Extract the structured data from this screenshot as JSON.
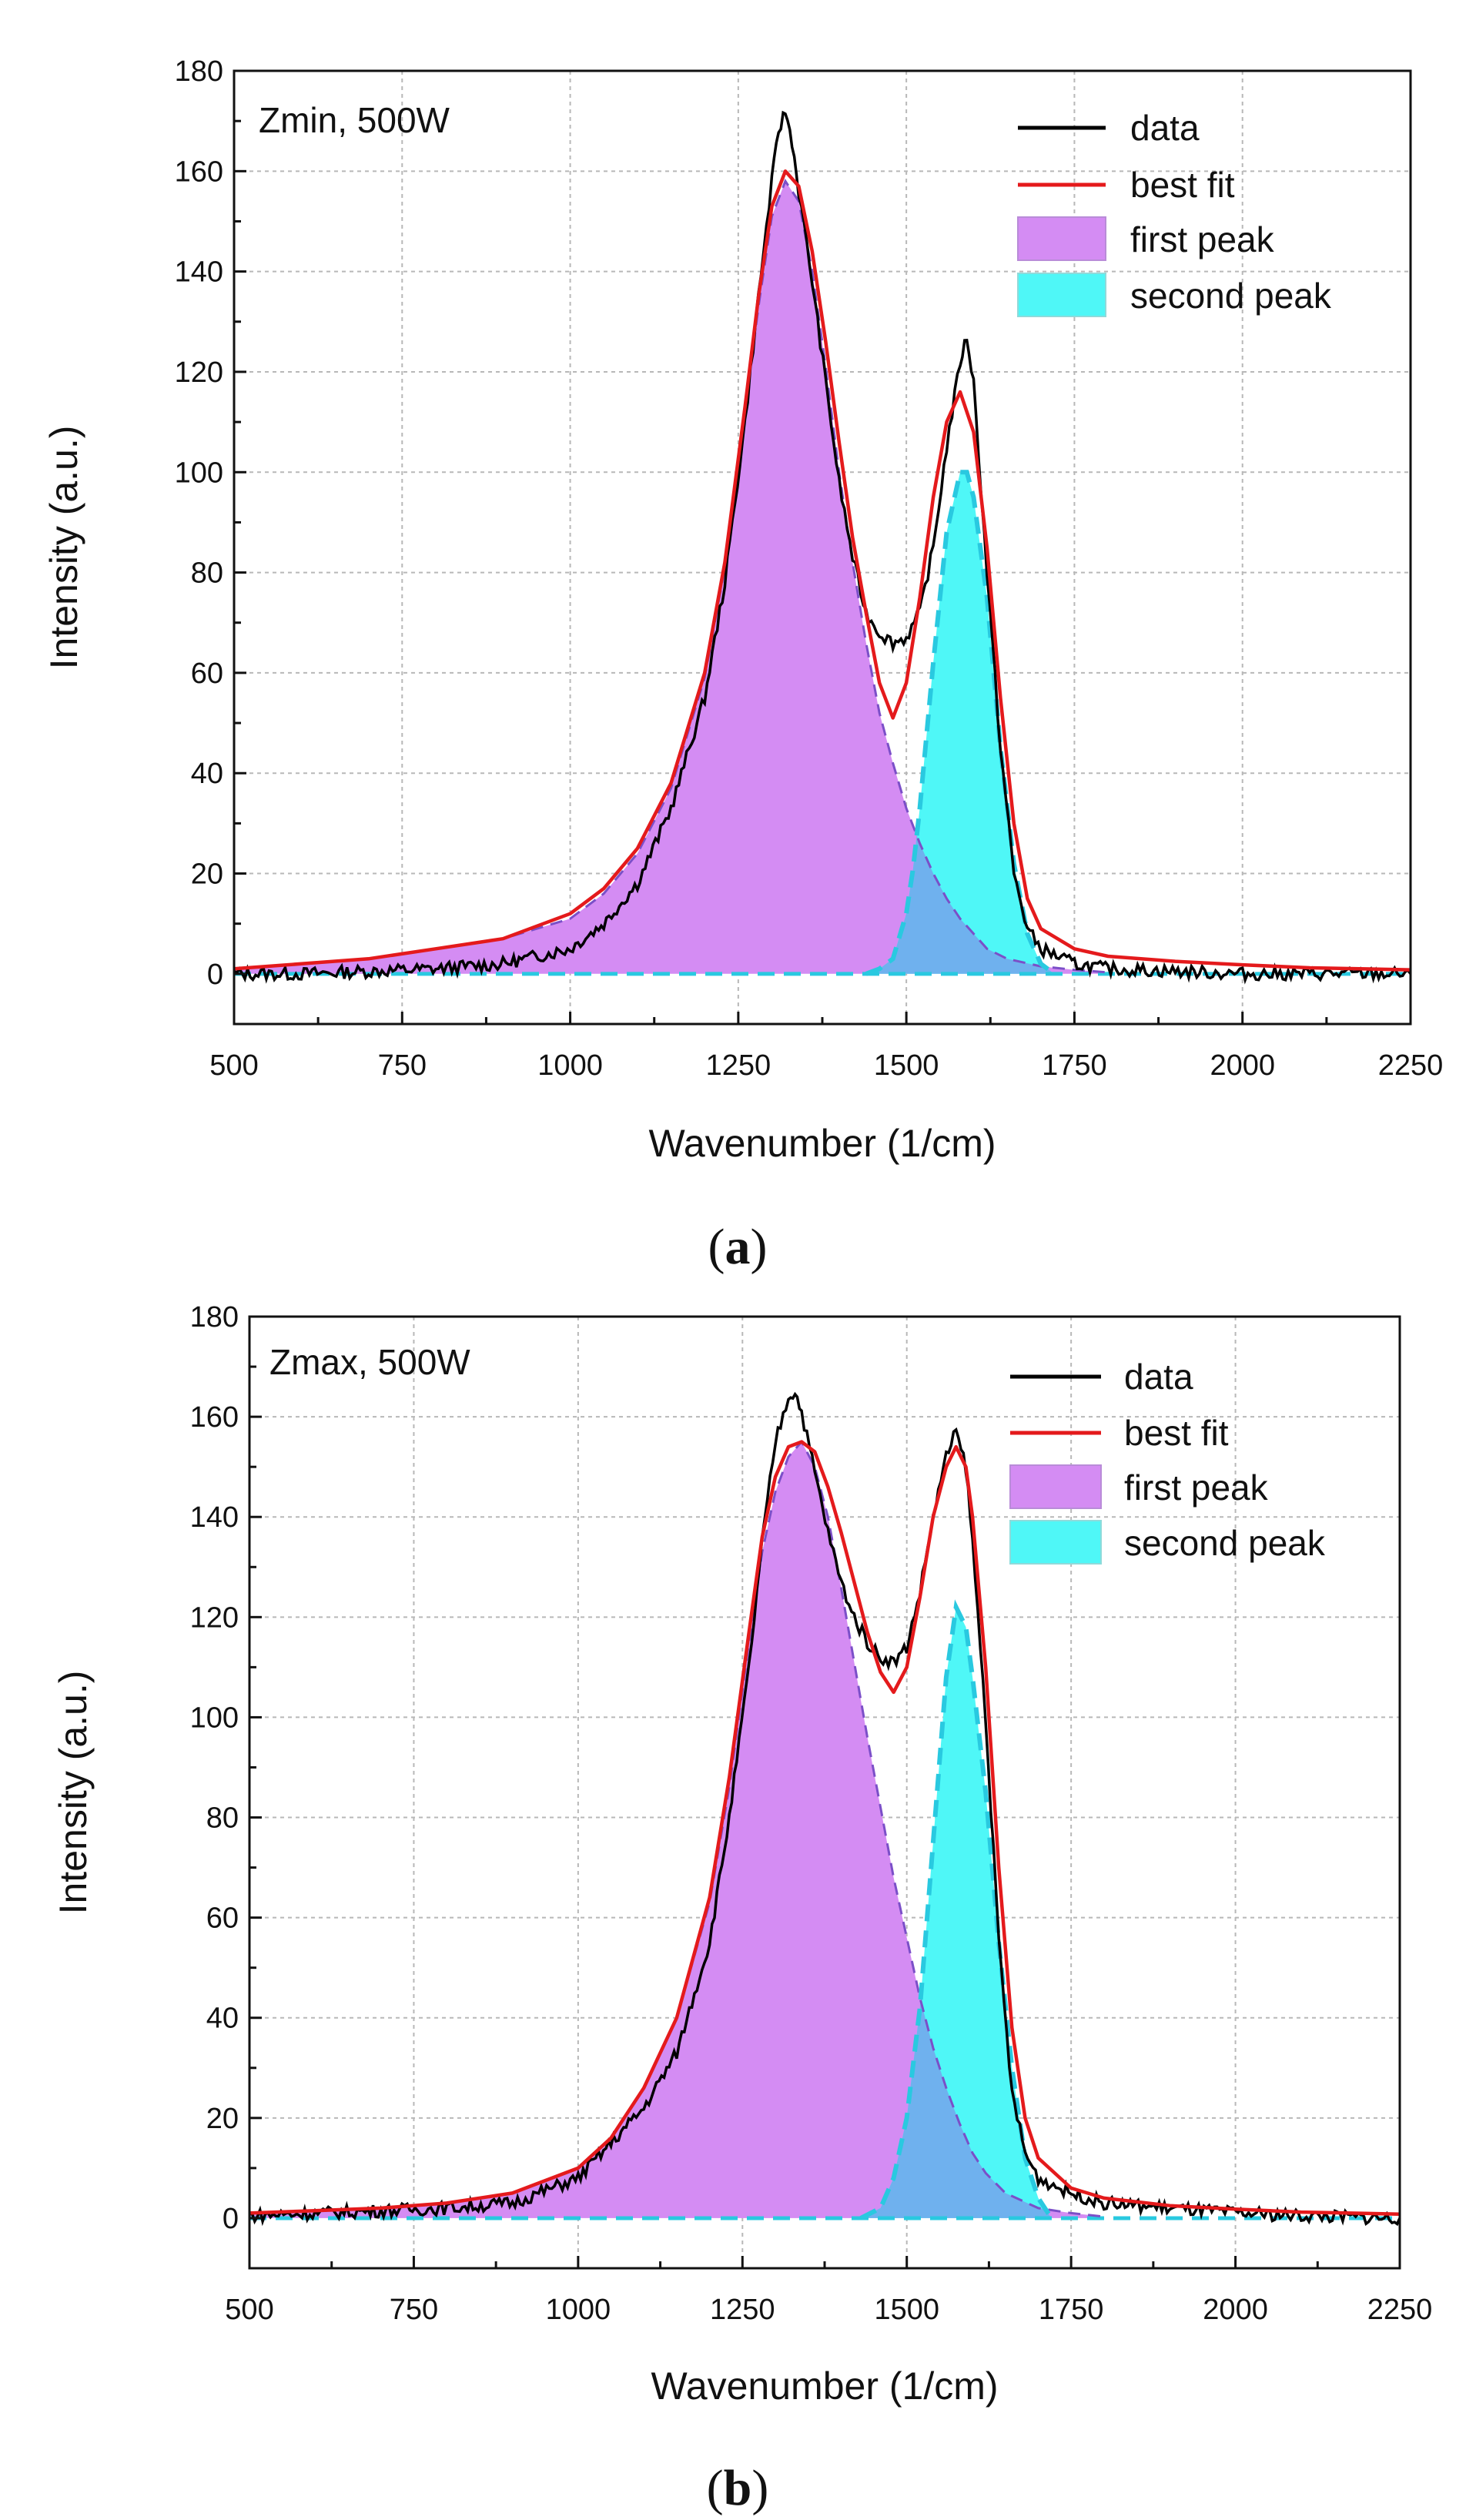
{
  "figure": {
    "panels": [
      {
        "id": "a",
        "label_open": "(",
        "label_letter": "a",
        "label_close": ")"
      },
      {
        "id": "b",
        "label_open": "(",
        "label_letter": "b",
        "label_close": ")"
      }
    ]
  },
  "colors": {
    "data": "#000000",
    "best_fit": "#e41a1c",
    "first_peak_fill": "#d48cf3",
    "first_peak_line": "#7b4fc8",
    "second_peak_fill": "#4ff7f7",
    "second_peak_line": "#29c9e0",
    "overlap_fill": "#6fb1ee",
    "baseline": "#29c9e0"
  },
  "chart_data": [
    {
      "type": "line",
      "panel": "a",
      "title": "",
      "annotation": "Zmin, 500W",
      "xlabel": "Wavenumber (1/cm)",
      "ylabel": "Intensity (a.u.)",
      "xlim": [
        500,
        2250
      ],
      "ylim": [
        -10,
        180
      ],
      "xticks": [
        500,
        750,
        1000,
        1250,
        1500,
        1750,
        2000,
        2250
      ],
      "yticks": [
        0,
        20,
        40,
        60,
        80,
        100,
        120,
        140,
        160,
        180
      ],
      "grid": true,
      "legend_position": "top-right",
      "legend": [
        "data",
        "best fit",
        "first peak",
        "second peak"
      ],
      "series": [
        {
          "name": "data",
          "x": [
            500,
            600,
            700,
            800,
            900,
            1000,
            1050,
            1100,
            1150,
            1200,
            1230,
            1260,
            1280,
            1300,
            1310,
            1320,
            1330,
            1340,
            1360,
            1380,
            1400,
            1420,
            1440,
            1460,
            1480,
            1500,
            1520,
            1540,
            1560,
            1580,
            1590,
            1600,
            1620,
            1640,
            1660,
            1680,
            1700,
            1750,
            1800,
            1900,
            2000,
            2100,
            2250
          ],
          "y": [
            0,
            0,
            0.5,
            1,
            2,
            5,
            10,
            18,
            33,
            55,
            78,
            110,
            135,
            158,
            168,
            172,
            166,
            156,
            138,
            118,
            98,
            83,
            72,
            68,
            66,
            67,
            72,
            85,
            105,
            122,
            127,
            118,
            80,
            45,
            20,
            9,
            5,
            2,
            1,
            0.5,
            0,
            0,
            0
          ]
        },
        {
          "name": "best fit",
          "x": [
            500,
            600,
            700,
            800,
            900,
            1000,
            1050,
            1100,
            1150,
            1200,
            1230,
            1260,
            1280,
            1300,
            1320,
            1340,
            1360,
            1380,
            1400,
            1420,
            1440,
            1460,
            1480,
            1500,
            1520,
            1540,
            1560,
            1580,
            1600,
            1620,
            1640,
            1660,
            1680,
            1700,
            1750,
            1800,
            1900,
            2000,
            2100,
            2250
          ],
          "y": [
            1,
            2,
            3,
            5,
            7,
            12,
            17,
            25,
            38,
            60,
            82,
            113,
            135,
            153,
            160,
            157,
            144,
            126,
            106,
            87,
            72,
            58,
            51,
            58,
            75,
            95,
            110,
            116,
            108,
            85,
            55,
            30,
            15,
            9,
            5,
            3.5,
            2.5,
            1.8,
            1.2,
            0.8
          ]
        },
        {
          "name": "first peak",
          "x": [
            500,
            600,
            700,
            800,
            900,
            1000,
            1050,
            1100,
            1150,
            1200,
            1230,
            1260,
            1280,
            1300,
            1320,
            1340,
            1360,
            1380,
            1400,
            1420,
            1440,
            1460,
            1480,
            1500,
            1520,
            1540,
            1560,
            1580,
            1600,
            1620,
            1650,
            1700,
            1750,
            1800
          ],
          "y": [
            1,
            2,
            3,
            5,
            7,
            11,
            16,
            24,
            37,
            59,
            81,
            112,
            133,
            151,
            158,
            154,
            140,
            121,
            100,
            82,
            66,
            52,
            42,
            33,
            26,
            20,
            15,
            11,
            8,
            5,
            3,
            1.5,
            0.8,
            0.3
          ]
        },
        {
          "name": "second peak",
          "x": [
            1440,
            1460,
            1480,
            1500,
            1510,
            1520,
            1540,
            1560,
            1580,
            1590,
            1600,
            1620,
            1640,
            1660,
            1680,
            1700,
            1720
          ],
          "y": [
            0,
            1,
            3,
            12,
            21,
            33,
            62,
            88,
            100,
            100,
            95,
            75,
            45,
            22,
            8,
            2,
            0
          ]
        }
      ]
    },
    {
      "type": "line",
      "panel": "b",
      "title": "",
      "annotation": "Zmax, 500W",
      "xlabel": "Wavenumber (1/cm)",
      "ylabel": "Intensity (a.u.)",
      "xlim": [
        500,
        2250
      ],
      "ylim": [
        -10,
        180
      ],
      "xticks": [
        500,
        750,
        1000,
        1250,
        1500,
        1750,
        2000,
        2250
      ],
      "yticks": [
        0,
        20,
        40,
        60,
        80,
        100,
        120,
        140,
        160,
        180
      ],
      "grid": true,
      "legend_position": "top-right",
      "legend": [
        "data",
        "best fit",
        "first peak",
        "second peak"
      ],
      "series": [
        {
          "name": "data",
          "x": [
            500,
            600,
            700,
            800,
            900,
            1000,
            1050,
            1100,
            1150,
            1200,
            1230,
            1260,
            1280,
            1300,
            1320,
            1330,
            1340,
            1360,
            1380,
            1400,
            1420,
            1440,
            1460,
            1480,
            1500,
            1520,
            1540,
            1560,
            1575,
            1590,
            1600,
            1620,
            1640,
            1660,
            1680,
            1700,
            1750,
            1800,
            1900,
            2000,
            2100,
            2250
          ],
          "y": [
            0.5,
            1,
            1.5,
            2,
            3,
            8,
            15,
            22,
            33,
            55,
            80,
            110,
            135,
            155,
            164,
            165,
            161,
            149,
            137,
            127,
            120,
            115,
            112,
            111,
            114,
            125,
            140,
            152,
            157,
            150,
            135,
            100,
            55,
            25,
            13,
            8,
            5,
            3,
            2,
            1,
            0.5,
            0
          ]
        },
        {
          "name": "best fit",
          "x": [
            500,
            600,
            700,
            800,
            900,
            1000,
            1050,
            1100,
            1150,
            1200,
            1230,
            1260,
            1280,
            1300,
            1320,
            1340,
            1360,
            1380,
            1400,
            1420,
            1440,
            1460,
            1480,
            1500,
            1520,
            1540,
            1560,
            1575,
            1590,
            1600,
            1620,
            1640,
            1660,
            1680,
            1700,
            1750,
            1800,
            1900,
            2000,
            2100,
            2250
          ],
          "y": [
            1,
            1.5,
            2,
            3,
            5,
            10,
            16,
            26,
            40,
            64,
            88,
            117,
            136,
            148,
            154,
            155,
            153,
            146,
            137,
            127,
            117,
            109,
            105,
            110,
            124,
            140,
            150,
            154,
            150,
            140,
            110,
            70,
            38,
            20,
            12,
            6,
            4,
            2.5,
            1.8,
            1.2,
            0.8
          ]
        },
        {
          "name": "first peak",
          "x": [
            500,
            600,
            700,
            800,
            900,
            1000,
            1050,
            1100,
            1150,
            1200,
            1230,
            1260,
            1280,
            1300,
            1320,
            1340,
            1360,
            1380,
            1400,
            1420,
            1440,
            1460,
            1480,
            1500,
            1520,
            1540,
            1560,
            1580,
            1600,
            1620,
            1650,
            1700,
            1750,
            1800
          ],
          "y": [
            1,
            1.5,
            2,
            3,
            5,
            10,
            16,
            26,
            40,
            63,
            86,
            115,
            133,
            145,
            152,
            155,
            150,
            140,
            126,
            111,
            96,
            82,
            68,
            56,
            44,
            34,
            26,
            19,
            13,
            9,
            5,
            2,
            1,
            0.3
          ]
        },
        {
          "name": "second peak",
          "x": [
            1430,
            1460,
            1480,
            1500,
            1520,
            1540,
            1560,
            1575,
            1590,
            1600,
            1620,
            1640,
            1660,
            1680,
            1700,
            1720
          ],
          "y": [
            0,
            2,
            8,
            20,
            42,
            75,
            108,
            122,
            118,
            108,
            85,
            55,
            30,
            12,
            4,
            0
          ]
        }
      ]
    }
  ]
}
